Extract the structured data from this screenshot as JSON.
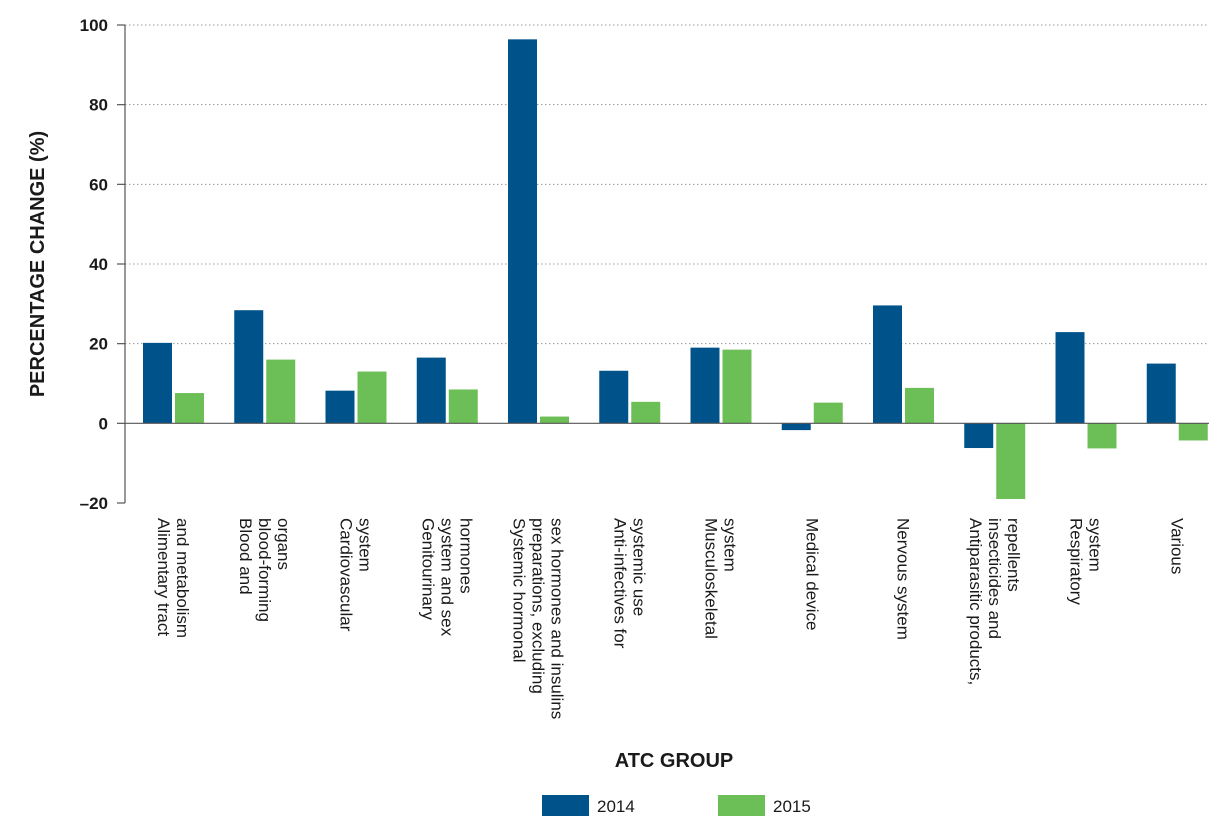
{
  "chart_data": {
    "type": "bar",
    "title": "",
    "xlabel": "ATC GROUP",
    "ylabel": "PERCENTAGE CHANGE (%)",
    "ylim": [
      -20,
      100
    ],
    "yticks": [
      -20,
      0,
      20,
      40,
      60,
      80,
      100
    ],
    "ytick_labels": [
      "–20",
      "0",
      "20",
      "40",
      "60",
      "80",
      "100"
    ],
    "grid": "horizontal dotted",
    "legend_position": "bottom-center",
    "categories": [
      [
        "Alimentary tract",
        "and metabolism"
      ],
      [
        "Blood and",
        "blood-forming",
        "organs"
      ],
      [
        "Cardiovascular",
        "system"
      ],
      [
        "Genitourinary",
        "system and sex",
        "hormones"
      ],
      [
        "Systemic hormonal",
        "preparations, excluding",
        "sex hormones and insulins"
      ],
      [
        "Anti-infectives for",
        "systemic use"
      ],
      [
        "Musculoskeletal",
        "system"
      ],
      [
        "Medical device"
      ],
      [
        "Nervous system"
      ],
      [
        "Antiparasitic products,",
        "insecticides and",
        "repellents"
      ],
      [
        "Respiratory",
        "system"
      ],
      [
        "Various"
      ]
    ],
    "series": [
      {
        "name": "2014",
        "color": "#00538a",
        "values": [
          20.2,
          28.4,
          8.2,
          16.5,
          96.4,
          13.2,
          19.0,
          -1.7,
          29.6,
          -6.2,
          22.9,
          15.0
        ]
      },
      {
        "name": "2015",
        "color": "#6cbf56",
        "values": [
          7.6,
          16.0,
          13.0,
          8.5,
          1.7,
          5.4,
          18.5,
          5.2,
          8.9,
          -19.0,
          -6.3,
          -4.3
        ]
      }
    ]
  }
}
